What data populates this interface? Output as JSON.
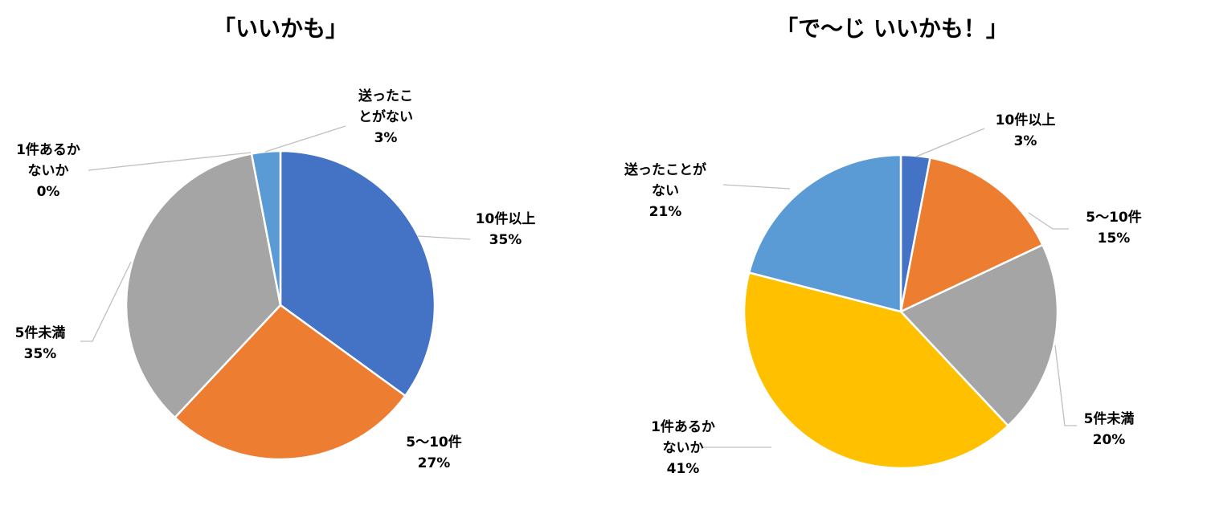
{
  "chart_data": [
    {
      "type": "pie",
      "title": "「いいかも」",
      "slices": [
        {
          "label": [
            "10件以上"
          ],
          "value": 35,
          "value_label": "35%",
          "color": "#4472C4"
        },
        {
          "label": [
            "5〜10件"
          ],
          "value": 27,
          "value_label": "27%",
          "color": "#ED7D31"
        },
        {
          "label": [
            "5件未満"
          ],
          "value": 35,
          "value_label": "35%",
          "color": "#A5A5A5"
        },
        {
          "label": [
            "1件あるか",
            "ないか"
          ],
          "value": 0,
          "value_label": "0%",
          "color": "#FFC000"
        },
        {
          "label": [
            "送ったこ",
            "とがない"
          ],
          "value": 3,
          "value_label": "3%",
          "color": "#5B9BD5"
        }
      ]
    },
    {
      "type": "pie",
      "title": "「で〜じ いいかも！」",
      "slices": [
        {
          "label": [
            "10件以上"
          ],
          "value": 3,
          "value_label": "3%",
          "color": "#4472C4"
        },
        {
          "label": [
            "5〜10件"
          ],
          "value": 15,
          "value_label": "15%",
          "color": "#ED7D31"
        },
        {
          "label": [
            "5件未満"
          ],
          "value": 20,
          "value_label": "20%",
          "color": "#A5A5A5"
        },
        {
          "label": [
            "1件あるか",
            "ないか"
          ],
          "value": 41,
          "value_label": "41%",
          "color": "#FFC000"
        },
        {
          "label": [
            "送ったことが",
            "ない"
          ],
          "value": 21,
          "value_label": "21%",
          "color": "#5B9BD5"
        }
      ]
    }
  ]
}
